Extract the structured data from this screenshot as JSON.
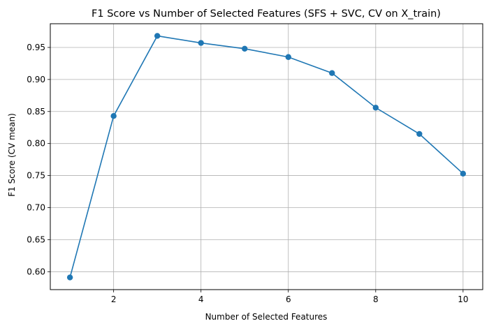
{
  "chart_data": {
    "type": "line",
    "title": "F1 Score vs Number of Selected Features (SFS + SVC, CV on X_train)",
    "xlabel": "Number of Selected Features",
    "ylabel": "F1 Score (CV mean)",
    "x": [
      1,
      2,
      3,
      4,
      5,
      6,
      7,
      8,
      9,
      10
    ],
    "series": [
      {
        "values": [
          0.591,
          0.843,
          0.968,
          0.957,
          0.948,
          0.935,
          0.91,
          0.856,
          0.815,
          0.753
        ],
        "color": "#1f77b4"
      }
    ],
    "xlim": [
      0.55,
      10.45
    ],
    "ylim": [
      0.572,
      0.987
    ],
    "xticks": [
      2,
      4,
      6,
      8,
      10
    ],
    "xtick_labels": [
      "2",
      "4",
      "6",
      "8",
      "10"
    ],
    "yticks": [
      0.6,
      0.65,
      0.7,
      0.75,
      0.8,
      0.85,
      0.9,
      0.95
    ],
    "ytick_labels": [
      "0.60",
      "0.65",
      "0.70",
      "0.75",
      "0.80",
      "0.85",
      "0.90",
      "0.95"
    ],
    "grid": true,
    "marker": "circle"
  }
}
